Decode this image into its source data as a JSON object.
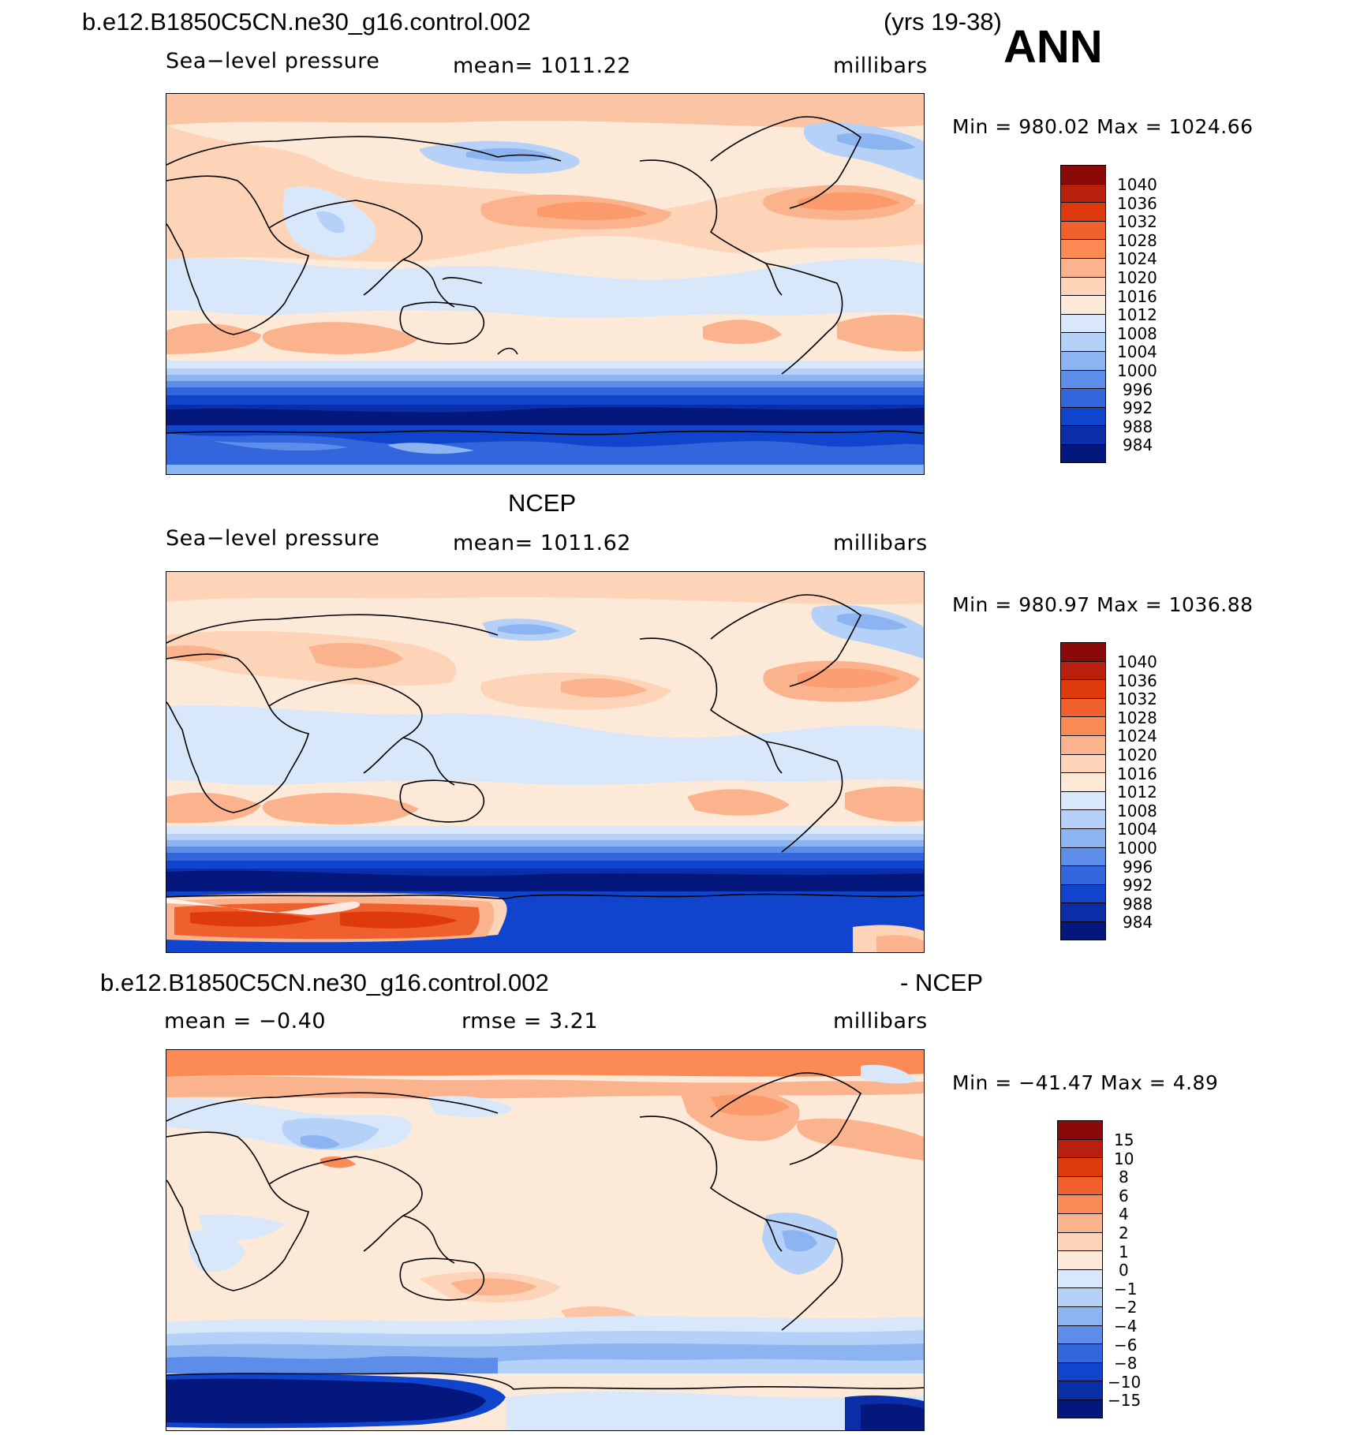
{
  "header": {
    "case_name": "b.e12.B1850C5CN.ne30_g16.control.002",
    "years": "(yrs 19-38)",
    "season": "ANN"
  },
  "panels": [
    {
      "id": "model",
      "title": "",
      "subtitle_left": "Sea−level pressure",
      "subtitle_mid": "mean=  1011.22",
      "subtitle_right": "millibars",
      "minmax": "Min  =  980.02  Max  =  1024.66",
      "colorbar": {
        "labels": [
          "1040",
          "1036",
          "1032",
          "1028",
          "1024",
          "1020",
          "1016",
          "1012",
          "1008",
          "1004",
          "1000",
          "996",
          "992",
          "988",
          "984"
        ],
        "colors": [
          "#8a0a0a",
          "#b8200d",
          "#de3a0d",
          "#f0602e",
          "#fb8a55",
          "#fbb38e",
          "#fdd4b8",
          "#fde9d8",
          "#d8e8fa",
          "#b6d1f7",
          "#8cb4f1",
          "#5c8ee9",
          "#3366dd",
          "#1144cc",
          "#0a2ea8",
          "#04177c"
        ]
      }
    },
    {
      "id": "obs",
      "title": "NCEP",
      "subtitle_left": "Sea−level pressure",
      "subtitle_mid": "mean=  1011.62",
      "subtitle_right": "millibars",
      "minmax": "Min  =  980.97  Max  =  1036.88",
      "colorbar": {
        "labels": [
          "1040",
          "1036",
          "1032",
          "1028",
          "1024",
          "1020",
          "1016",
          "1012",
          "1008",
          "1004",
          "1000",
          "996",
          "992",
          "988",
          "984"
        ],
        "colors": [
          "#8a0a0a",
          "#b8200d",
          "#de3a0d",
          "#f0602e",
          "#fb8a55",
          "#fbb38e",
          "#fdd4b8",
          "#fde9d8",
          "#d8e8fa",
          "#b6d1f7",
          "#8cb4f1",
          "#5c8ee9",
          "#3366dd",
          "#1144cc",
          "#0a2ea8",
          "#04177c"
        ]
      }
    },
    {
      "id": "diff",
      "title_left": "b.e12.B1850C5CN.ne30_g16.control.002",
      "title_right": "- NCEP",
      "subtitle_left": "mean  =    −0.40",
      "subtitle_mid": "rmse  =       3.21",
      "subtitle_right": "millibars",
      "minmax": "Min  =  −41.47  Max  =     4.89",
      "colorbar": {
        "labels": [
          "15",
          "10",
          "8",
          "6",
          "4",
          "2",
          "1",
          "0",
          "−1",
          "−2",
          "−4",
          "−6",
          "−8",
          "−10",
          "−15"
        ],
        "colors": [
          "#8a0a0a",
          "#b8200d",
          "#de3a0d",
          "#f0602e",
          "#fb8a55",
          "#fbb38e",
          "#fdd4b8",
          "#fde9d8",
          "#d8e8fa",
          "#b6d1f7",
          "#8cb4f1",
          "#5c8ee9",
          "#3366dd",
          "#1144cc",
          "#0a2ea8",
          "#04177c"
        ]
      }
    }
  ]
}
